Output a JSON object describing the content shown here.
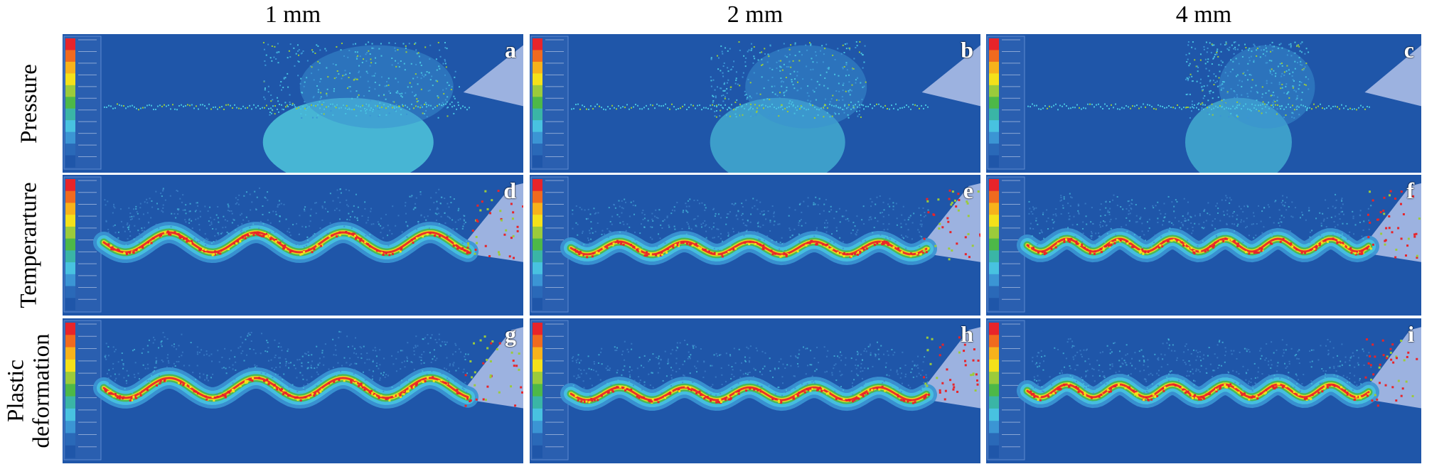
{
  "columns": [
    {
      "label": "1 mm"
    },
    {
      "label": "2 mm"
    },
    {
      "label": "4 mm"
    }
  ],
  "rows": [
    {
      "label_lines": [
        "Pressure"
      ]
    },
    {
      "label_lines": [
        "Temperarture"
      ]
    },
    {
      "label_lines": [
        "Plastic",
        "deformation"
      ]
    }
  ],
  "panels": [
    {
      "letter": "a"
    },
    {
      "letter": "b"
    },
    {
      "letter": "c"
    },
    {
      "letter": "d"
    },
    {
      "letter": "e"
    },
    {
      "letter": "f"
    },
    {
      "letter": "g"
    },
    {
      "letter": "h"
    },
    {
      "letter": "i"
    }
  ],
  "colormap": [
    "#e8242a",
    "#f06a1e",
    "#f7b21b",
    "#f4e11a",
    "#9bcb3b",
    "#4db848",
    "#3ab5a6",
    "#48c2e0",
    "#3b95d4",
    "#2a69b8",
    "#1f56a9"
  ],
  "colors": {
    "background": "#1f56a9",
    "tool": "#9cb2e0",
    "accent_cyan": "#4fc5dc"
  }
}
